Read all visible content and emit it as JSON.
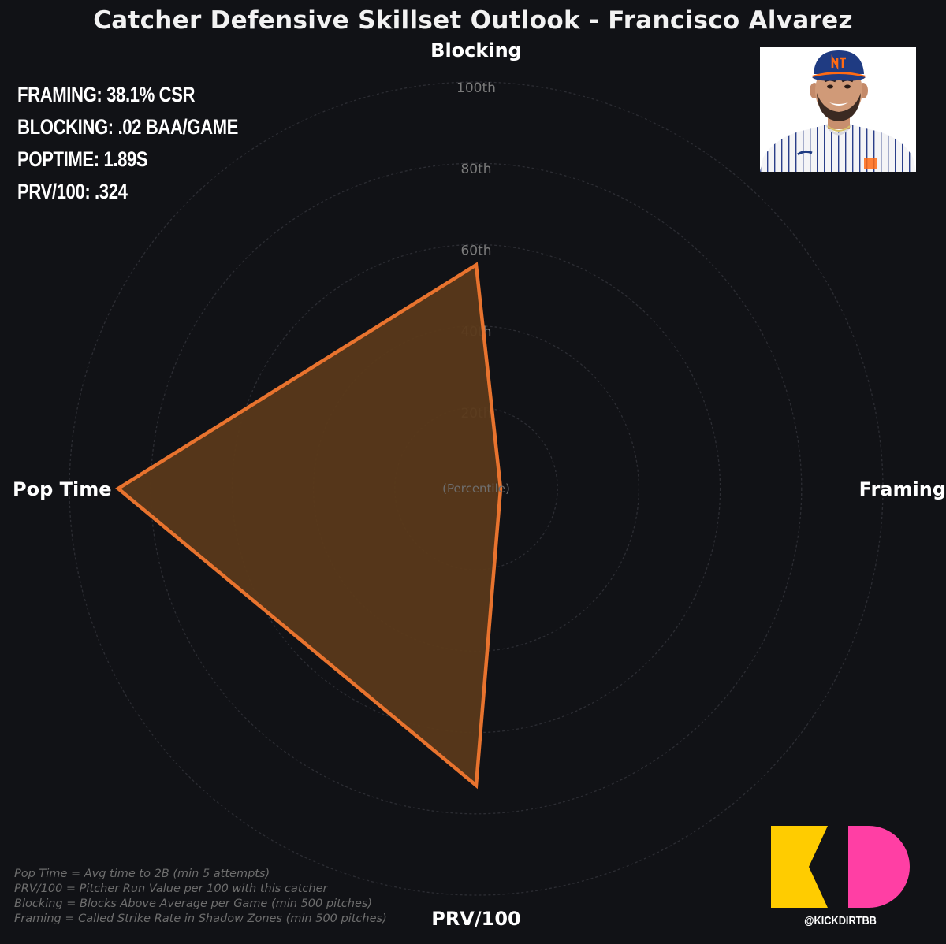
{
  "title": "Catcher Defensive Skillset Outlook - Francisco Alvarez",
  "stats": [
    "FRAMING: 38.1% CSR",
    "BLOCKING: .02 BAA/GAME",
    "POPTIME: 1.89S",
    "PRV/100: .324"
  ],
  "footnotes": [
    "Pop Time = Avg time to 2B (min 5 attempts)",
    "PRV/100 = Pitcher Run Value per 100 with this catcher",
    "Blocking = Blocks Above Average per Game (min 500 pitches)",
    "Framing = Called Strike Rate in Shadow Zones (min 500 pitches)"
  ],
  "branding": {
    "handle": "@KICKDIRTBB"
  },
  "colors": {
    "background": "#111216",
    "series_line": "#e8732e",
    "series_fill": "#5a391a",
    "logo_yellow": "#ffcc00",
    "logo_pink": "#ff3fa4",
    "mets_blue": "#1f3b82",
    "mets_orange": "#ff6a13"
  },
  "chart_data": {
    "type": "radar",
    "title": "Catcher Defensive Skillset Outlook - Francisco Alvarez",
    "center_label": "(Percentile)",
    "axes": [
      "Blocking",
      "Framing",
      "PRV/100",
      "Pop Time"
    ],
    "ring_ticks": [
      "20th",
      "40th",
      "60th",
      "80th",
      "100th"
    ],
    "range": [
      0,
      100
    ],
    "grid": true,
    "series": [
      {
        "values": [
          55,
          6,
          73,
          88
        ]
      }
    ]
  }
}
